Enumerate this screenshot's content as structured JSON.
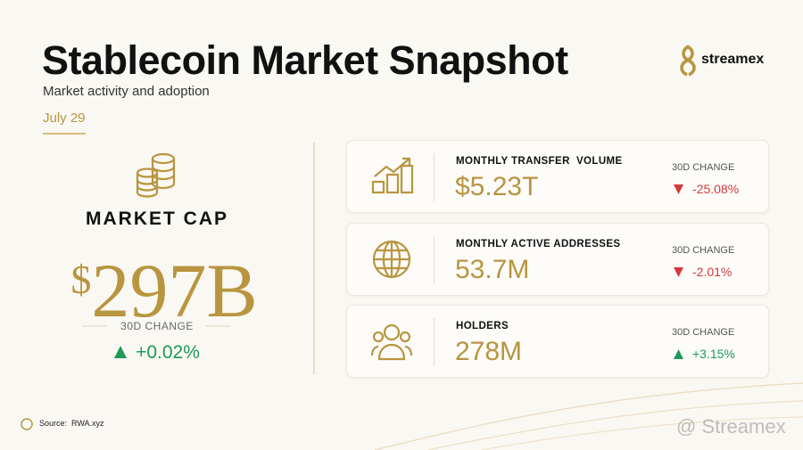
{
  "header": {
    "title": "Stablecoin Market Snapshot",
    "subtitle": "Market activity and adoption",
    "date": "July 29",
    "logo": "streamex"
  },
  "main_metric": {
    "label": "MARKET CAP",
    "currency_symbol": "$",
    "amount": "297B",
    "change_label": "30D CHANGE",
    "change": "+0.02%",
    "direction": "up"
  },
  "cards": [
    {
      "icon": "chart",
      "label": "MONTHLY TRANSFER  VOLUME",
      "value": "$5.23T",
      "change_label": "30D CHANGE",
      "change": "-25.08%",
      "direction": "down"
    },
    {
      "icon": "globe",
      "label": "MONTHLY ACTIVE ADDRESSES",
      "value": "53.7M",
      "change_label": "30D CHANGE",
      "change": "-2.01%",
      "direction": "down"
    },
    {
      "icon": "people",
      "label": "HOLDERS",
      "value": "278M",
      "change_label": "30D CHANGE",
      "change": "+3.15%",
      "direction": "up"
    }
  ],
  "footer": {
    "source_label": "Source:",
    "source": "RWA.xyz",
    "watermark": "@ Streamex"
  }
}
